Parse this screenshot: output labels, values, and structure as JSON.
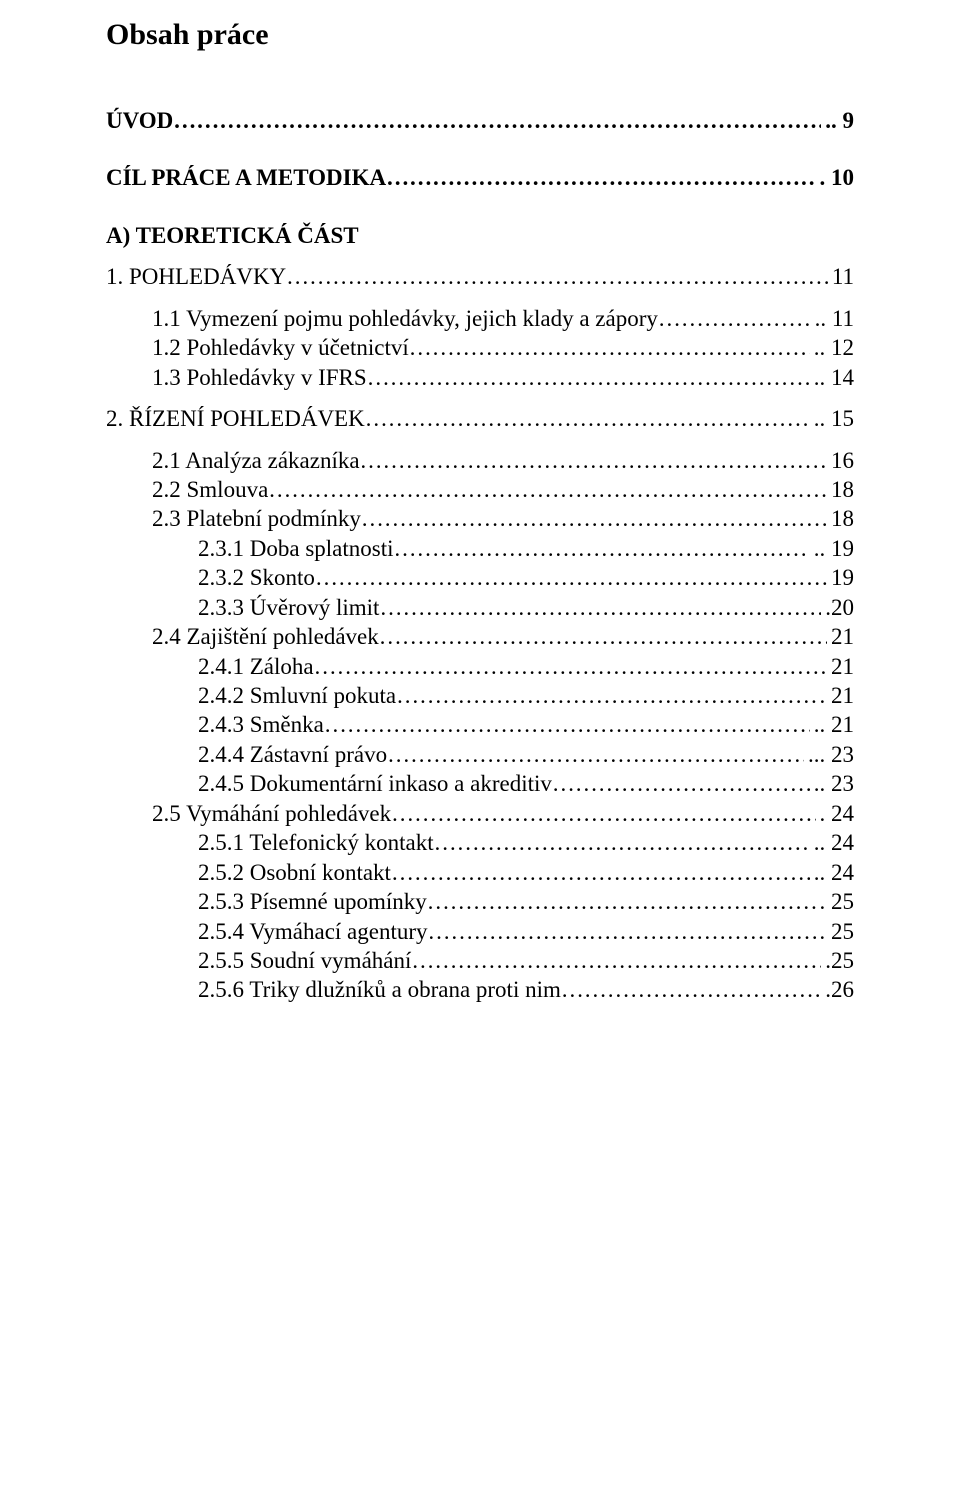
{
  "title": "Obsah práce",
  "dot_char_periods": "…………………………………………………………………………………………………………………………………………………………………………………………………………………………",
  "dot_char_solid": "........................................................................................................................................................................................................",
  "entries": [
    {
      "label": "ÚVOD",
      "page": "9",
      "indent": 0,
      "bold": true,
      "sep": ".. ",
      "dots": "periods",
      "gap_after": "large"
    },
    {
      "label": "CÍL PRÁCE A METODIKA",
      "page": "10",
      "indent": 0,
      "bold": true,
      "sep": ". ",
      "dots": "periods",
      "gap_after": "large"
    },
    {
      "label": "A) TEORETICKÁ ČÁST",
      "page": "",
      "indent": 0,
      "bold": true,
      "sep": "",
      "dots": "none",
      "gap_after": "med"
    },
    {
      "label": "1. POHLEDÁVKY",
      "page": "11",
      "indent": 0,
      "bold": false,
      "sep": " ",
      "dots": "periods",
      "gap_after": "med"
    },
    {
      "label": "1.1 Vymezení pojmu pohledávky, jejich klady a zápory",
      "page": "11",
      "indent": 1,
      "bold": false,
      "sep": ".. ",
      "dots": "periods",
      "gap_after": ""
    },
    {
      "label": "1.2 Pohledávky v účetnictví",
      "page": "12",
      "indent": 1,
      "bold": false,
      "sep": ".. ",
      "dots": "periods",
      "gap_after": ""
    },
    {
      "label": "1.3 Pohledávky v IFRS",
      "page": "14",
      "indent": 1,
      "bold": false,
      "sep": ".. ",
      "dots": "periods",
      "gap_after": "med"
    },
    {
      "label": "2. ŘÍZENÍ POHLEDÁVEK",
      "page": "15",
      "indent": 0,
      "bold": false,
      "sep": ".. ",
      "dots": "periods",
      "gap_after": "med"
    },
    {
      "label": "2.1 Analýza zákazníka",
      "page": "16",
      "indent": 1,
      "bold": false,
      "sep": "",
      "dots": "periods",
      "gap_after": ""
    },
    {
      "label": "2.2 Smlouva",
      "page": "18",
      "indent": 1,
      "bold": false,
      "sep": "",
      "dots": "periods",
      "gap_after": ""
    },
    {
      "label": "2.3 Platební podmínky",
      "page": "18",
      "indent": 1,
      "bold": false,
      "sep": "",
      "dots": "periods",
      "gap_after": ""
    },
    {
      "label": "2.3.1 Doba splatnosti",
      "page": "19",
      "indent": 2,
      "bold": false,
      "sep": ".. ",
      "dots": "periods",
      "gap_after": ""
    },
    {
      "label": "2.3.2 Skonto",
      "page": "19",
      "indent": 2,
      "bold": false,
      "sep": " ",
      "dots": "periods",
      "gap_after": ""
    },
    {
      "label": "2.3.3 Úvěrový limit",
      "page": "20",
      "indent": 2,
      "bold": false,
      "sep": ".",
      "dots": "periods",
      "gap_after": ""
    },
    {
      "label": "2.4 Zajištění pohledávek",
      "page": "21",
      "indent": 1,
      "bold": false,
      "sep": " ",
      "dots": "periods",
      "gap_after": ""
    },
    {
      "label": "2.4.1 Záloha",
      "page": "21",
      "indent": 2,
      "bold": false,
      "sep": " ",
      "dots": "periods",
      "gap_after": ""
    },
    {
      "label": "2.4.2 Smluvní pokuta",
      "page": "21",
      "indent": 2,
      "bold": false,
      "sep": ". ",
      "dots": "periods",
      "gap_after": ""
    },
    {
      "label": "2.4.3 Směnka",
      "page": "21",
      "indent": 2,
      "bold": false,
      "sep": ".. ",
      "dots": "periods",
      "gap_after": ""
    },
    {
      "label": "2.4.4 Zástavní právo",
      "page": "23",
      "indent": 2,
      "bold": false,
      "sep": "... ",
      "dots": "periods",
      "gap_after": ""
    },
    {
      "label": "2.4.5 Dokumentární inkaso a akreditiv",
      "page": "23",
      "indent": 2,
      "bold": false,
      "sep": ".. ",
      "dots": "periods",
      "gap_after": ""
    },
    {
      "label": "2.5 Vymáhání pohledávek",
      "page": "24",
      "indent": 1,
      "bold": false,
      "sep": ". ",
      "dots": "periods",
      "gap_after": ""
    },
    {
      "label": "2.5.1 Telefonický kontakt",
      "page": "24",
      "indent": 2,
      "bold": false,
      "sep": ".. ",
      "dots": "periods",
      "gap_after": ""
    },
    {
      "label": "2.5.2 Osobní kontakt",
      "page": "24",
      "indent": 2,
      "bold": false,
      "sep": ".. ",
      "dots": "periods",
      "gap_after": ""
    },
    {
      "label": "2.5.3 Písemné upomínky",
      "page": "25",
      "indent": 2,
      "bold": false,
      "sep": ". ",
      "dots": "periods",
      "gap_after": ""
    },
    {
      "label": "2.5.4 Vymáhací agentury",
      "page": "25",
      "indent": 2,
      "bold": false,
      "sep": "",
      "dots": "periods",
      "gap_after": ""
    },
    {
      "label": "2.5.5 Soudní vymáhání",
      "page": "25",
      "indent": 2,
      "bold": false,
      "sep": ".",
      "dots": "periods",
      "gap_after": ""
    },
    {
      "label": "2.5.6 Triky dlužníků a obrana proti nim",
      "page": "26",
      "indent": 2,
      "bold": false,
      "sep": ".",
      "dots": "periods",
      "gap_after": ""
    }
  ]
}
